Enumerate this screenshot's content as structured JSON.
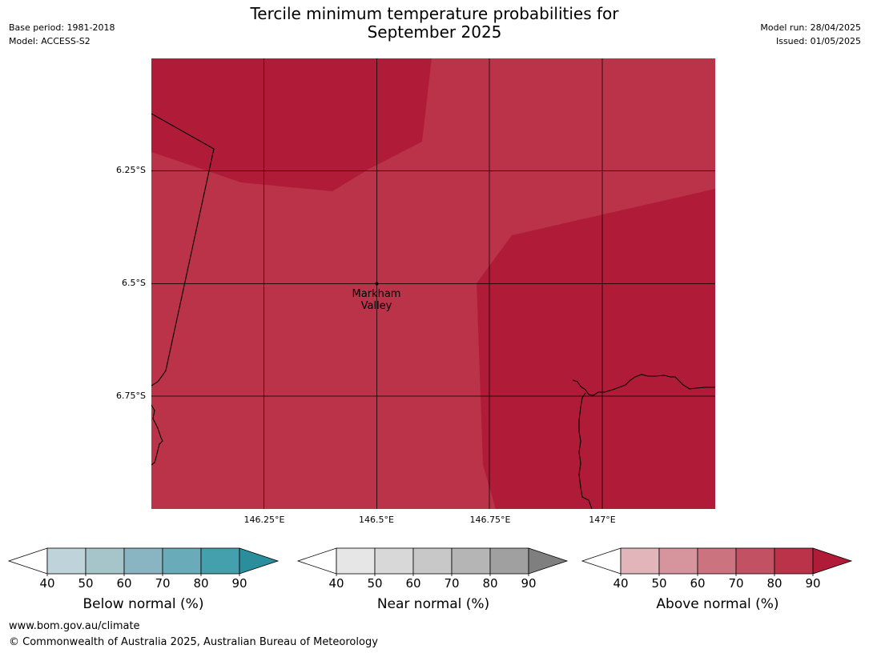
{
  "title": "Tercile minimum temperature probabilities for\nSeptember 2025",
  "meta_left": {
    "base_period": "Base period: 1981-2018",
    "model": "Model: ACCESS-S2"
  },
  "meta_right": {
    "model_run": "Model run: 28/04/2025",
    "issued": "Issued: 01/05/2025"
  },
  "map": {
    "latitude_labels": [
      "6.25°S",
      "6.5°S",
      "6.75°S"
    ],
    "longitude_labels": [
      "146.25°E",
      "146.5°E",
      "146.75°E",
      "147°E"
    ],
    "place": {
      "name": "Markham\nValley",
      "lon": 146.5,
      "lat": -6.5
    },
    "extent": {
      "lon_min": 146.0,
      "lon_max": 147.25,
      "lat_min": -7.0,
      "lat_max": -6.0
    },
    "regions": [
      {
        "category": "Above normal",
        "probability_range": "80–90",
        "color": "#bb3349"
      },
      {
        "category": "Above normal",
        "probability_range": "90+",
        "color": "#b01c37"
      }
    ]
  },
  "colorbars": [
    {
      "title": "Below normal (%)",
      "ticks": [
        "40",
        "50",
        "60",
        "70",
        "80",
        "90"
      ],
      "colors": [
        "#ffffff",
        "#bed4da",
        "#a6c5cb",
        "#89b4c1",
        "#6aabb9",
        "#45a0ad",
        "#2b8e9c"
      ]
    },
    {
      "title": "Near normal (%)",
      "ticks": [
        "40",
        "50",
        "60",
        "70",
        "80",
        "90"
      ],
      "colors": [
        "#ffffff",
        "#e6e6e6",
        "#d8d8d8",
        "#c8c8c8",
        "#b5b5b5",
        "#a0a0a0",
        "#7f7f7f"
      ]
    },
    {
      "title": "Above normal (%)",
      "ticks": [
        "40",
        "50",
        "60",
        "70",
        "80",
        "90"
      ],
      "colors": [
        "#ffffff",
        "#e2b5bb",
        "#d6949d",
        "#cb737e",
        "#c25263",
        "#bb3349",
        "#b01c37"
      ]
    }
  ],
  "footer": {
    "url": "www.bom.gov.au/climate",
    "copyright": "© Commonwealth of Australia 2025, Australian Bureau of Meteorology"
  }
}
